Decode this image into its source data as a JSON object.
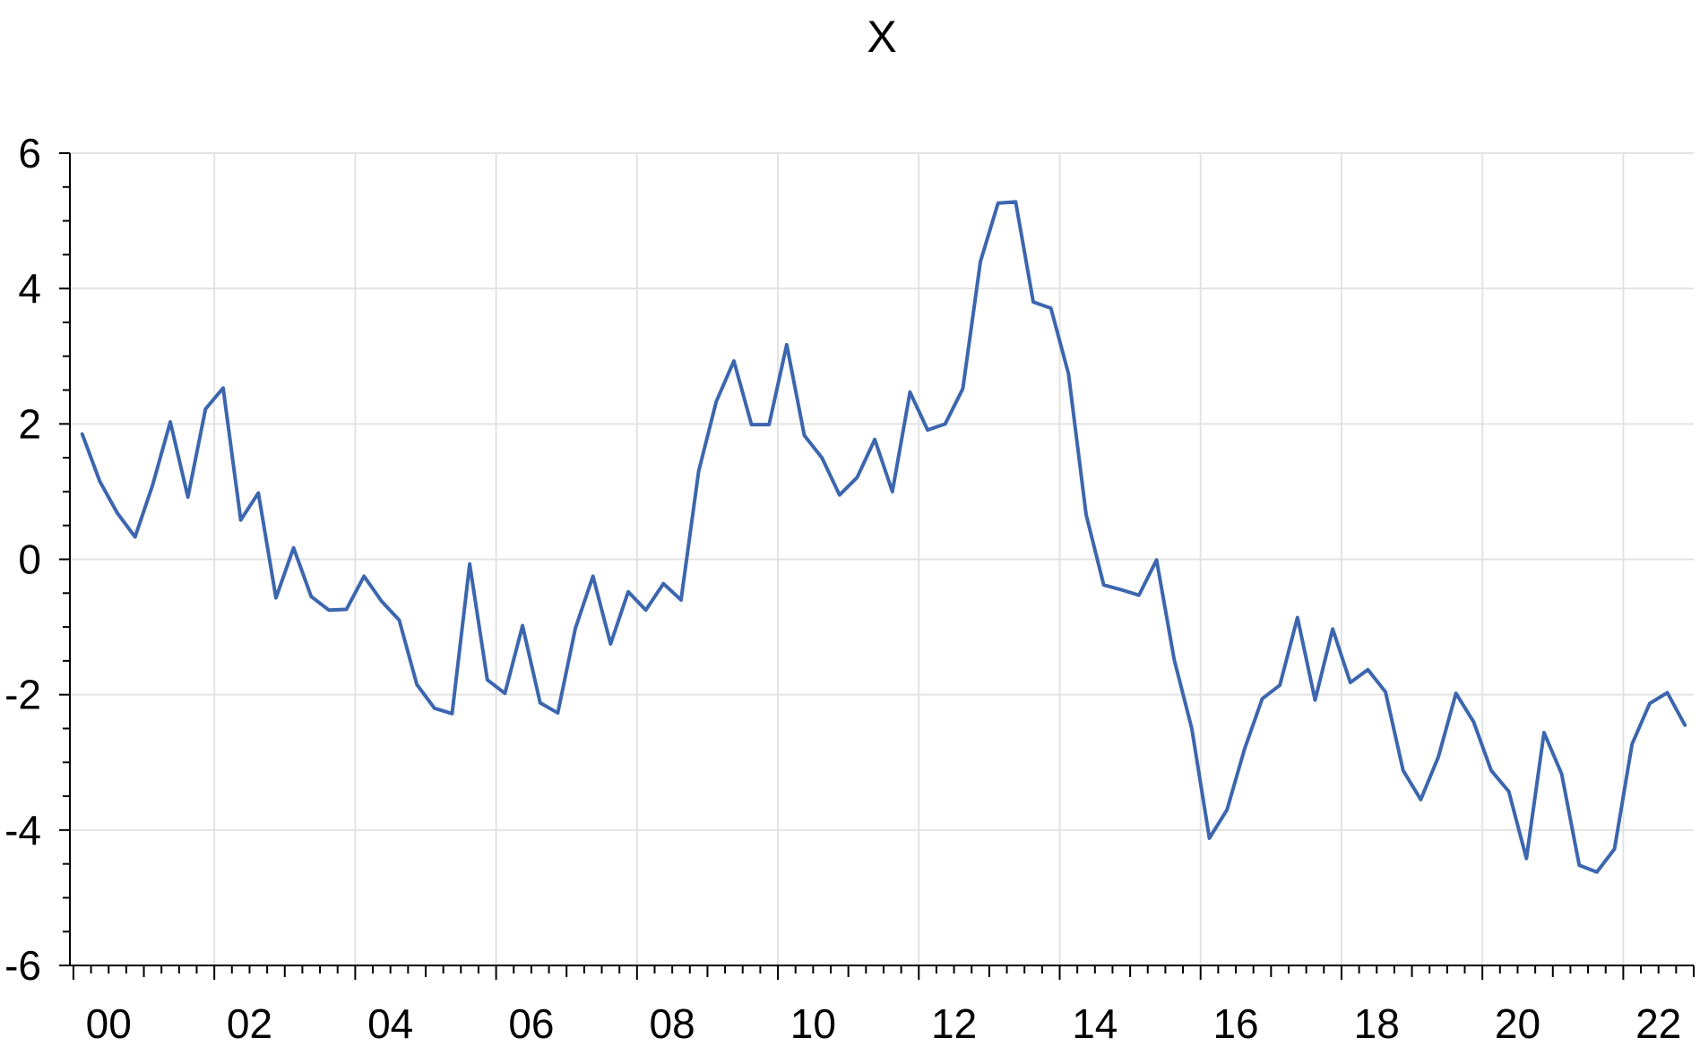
{
  "chart_data": {
    "type": "line",
    "title": "X",
    "xlabel": "",
    "ylabel": "",
    "grid": true,
    "legend": "none",
    "frequency": "quarterly",
    "x_start": 2000.0,
    "xlim": [
      1999.95,
      2023.0
    ],
    "ylim": [
      -6,
      6
    ],
    "y_ticks": [
      6,
      4,
      2,
      0,
      -2,
      -4,
      -6
    ],
    "y_tick_labels": [
      "6",
      "4",
      "2",
      "0",
      "-2",
      "-4",
      "-6"
    ],
    "x_ticks": [
      2000,
      2002,
      2004,
      2006,
      2008,
      2010,
      2012,
      2014,
      2016,
      2018,
      2020,
      2022
    ],
    "x_tick_labels": [
      "00",
      "02",
      "04",
      "06",
      "08",
      "10",
      "12",
      "14",
      "16",
      "18",
      "20",
      "22"
    ],
    "colors": {
      "series": "#3c66ae",
      "grid": "#e3e3e3",
      "axis": "#000000"
    },
    "series": [
      {
        "values": [
          1.85,
          1.15,
          0.68,
          0.33,
          1.1,
          2.03,
          0.92,
          2.22,
          2.53,
          0.58,
          0.98,
          -0.57,
          0.17,
          -0.55,
          -0.75,
          -0.74,
          -0.25,
          -0.62,
          -0.9,
          -1.85,
          -2.2,
          -2.28,
          -0.07,
          -1.78,
          -1.98,
          -0.98,
          -2.12,
          -2.27,
          -1.02,
          -0.25,
          -1.25,
          -0.48,
          -0.75,
          -0.36,
          -0.6,
          1.3,
          2.33,
          2.93,
          1.99,
          1.99,
          3.17,
          1.83,
          1.5,
          0.95,
          1.21,
          1.77,
          1.0,
          2.47,
          1.91,
          2.0,
          2.52,
          4.4,
          5.26,
          5.28,
          3.8,
          3.71,
          2.74,
          0.66,
          -0.38,
          -0.45,
          -0.53,
          -0.01,
          -1.48,
          -2.5,
          -4.12,
          -3.7,
          -2.8,
          -2.06,
          -1.86,
          -0.86,
          -2.08,
          -1.03,
          -1.82,
          -1.63,
          -1.96,
          -3.12,
          -3.55,
          -2.92,
          -1.98,
          -2.4,
          -3.12,
          -3.43,
          -4.42,
          -2.56,
          -3.17,
          -4.52,
          -4.62,
          -4.28,
          -2.73,
          -2.13,
          -1.97,
          -2.45
        ]
      }
    ]
  }
}
